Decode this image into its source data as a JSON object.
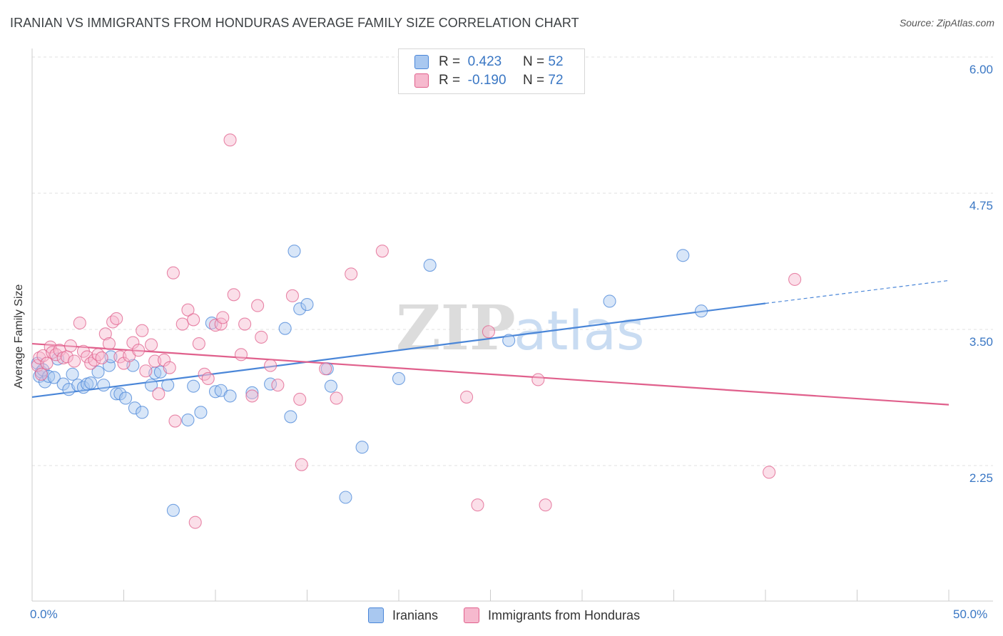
{
  "header": {
    "title": "IRANIAN VS IMMIGRANTS FROM HONDURAS AVERAGE FAMILY SIZE CORRELATION CHART",
    "source": "Source: ZipAtlas.com"
  },
  "watermark": {
    "zip": "ZIP",
    "atlas": "atlas"
  },
  "legend": {
    "rows": [
      {
        "r_label": "R =",
        "r_value": "0.423",
        "n_label": "N =",
        "n_value": "52",
        "color": "#a9c8f0"
      },
      {
        "r_label": "R =",
        "r_value": "-0.190",
        "n_label": "N =",
        "n_value": "72",
        "color": "#f6b9ce"
      }
    ]
  },
  "bottom_legend": {
    "items": [
      {
        "label": "Iranians",
        "color": "#a9c8f0"
      },
      {
        "label": "Immigrants from Honduras",
        "color": "#f6b9ce"
      }
    ]
  },
  "axis_labels": {
    "x_min": "0.0%",
    "x_max": "50.0%",
    "ylabel": "Average Family Size"
  },
  "chart_data": {
    "type": "scatter",
    "title": "IRANIAN VS IMMIGRANTS FROM HONDURAS AVERAGE FAMILY SIZE CORRELATION CHART",
    "xlabel": "",
    "ylabel": "Average Family Size",
    "xlim": [
      0,
      50
    ],
    "ylim": [
      1.2,
      6.1
    ],
    "y_ticks": [
      {
        "value": 2.25,
        "label": "2.25"
      },
      {
        "value": 3.5,
        "label": "3.50"
      },
      {
        "value": 4.75,
        "label": "4.75"
      },
      {
        "value": 6.0,
        "label": "6.00"
      }
    ],
    "x_tick_labels": [
      "0.0%",
      "50.0%"
    ],
    "grid": "horizontal-dashed",
    "legend_position": "top-center",
    "series": [
      {
        "name": "Iranians",
        "color": "#4a86d8",
        "fill": "#a9c8f0",
        "trend": {
          "x0": 0,
          "y0": 2.99,
          "x1": 40,
          "y1": 3.85,
          "dash_to_x": 50,
          "dash_to_y": 4.06
        },
        "points": [
          [
            0.3,
            3.3
          ],
          [
            0.4,
            3.18
          ],
          [
            0.5,
            3.22
          ],
          [
            0.6,
            3.24
          ],
          [
            0.7,
            3.13
          ],
          [
            0.9,
            3.18
          ],
          [
            1.2,
            3.17
          ],
          [
            1.4,
            3.34
          ],
          [
            1.7,
            3.11
          ],
          [
            2.0,
            3.06
          ],
          [
            2.2,
            3.2
          ],
          [
            2.5,
            3.1
          ],
          [
            2.8,
            3.08
          ],
          [
            3.0,
            3.11
          ],
          [
            3.2,
            3.12
          ],
          [
            3.6,
            3.22
          ],
          [
            3.9,
            3.1
          ],
          [
            4.2,
            3.28
          ],
          [
            4.3,
            3.36
          ],
          [
            4.6,
            3.02
          ],
          [
            4.8,
            3.02
          ],
          [
            5.1,
            2.98
          ],
          [
            5.5,
            3.28
          ],
          [
            5.6,
            2.89
          ],
          [
            6.0,
            2.85
          ],
          [
            6.5,
            3.1
          ],
          [
            6.7,
            3.21
          ],
          [
            7.0,
            3.22
          ],
          [
            7.4,
            3.1
          ],
          [
            7.7,
            1.95
          ],
          [
            8.5,
            2.78
          ],
          [
            8.8,
            3.09
          ],
          [
            9.2,
            2.85
          ],
          [
            9.8,
            3.67
          ],
          [
            10.0,
            3.04
          ],
          [
            10.3,
            3.05
          ],
          [
            10.8,
            3.0
          ],
          [
            12.0,
            3.03
          ],
          [
            13.0,
            3.11
          ],
          [
            13.8,
            3.62
          ],
          [
            14.1,
            2.81
          ],
          [
            14.6,
            3.8
          ],
          [
            14.3,
            4.33
          ],
          [
            15.0,
            3.84
          ],
          [
            16.1,
            3.25
          ],
          [
            16.3,
            3.09
          ],
          [
            17.1,
            2.07
          ],
          [
            18.0,
            2.53
          ],
          [
            20.0,
            3.16
          ],
          [
            21.7,
            4.2
          ],
          [
            26.0,
            3.51
          ],
          [
            31.5,
            3.87
          ],
          [
            35.5,
            4.29
          ],
          [
            36.5,
            3.78
          ]
        ]
      },
      {
        "name": "Immigrants from Honduras",
        "color": "#e0608c",
        "fill": "#f6b9ce",
        "trend": {
          "x0": 0,
          "y0": 3.48,
          "x1": 50,
          "y1": 2.92
        },
        "points": [
          [
            0.3,
            3.28
          ],
          [
            0.4,
            3.35
          ],
          [
            0.5,
            3.2
          ],
          [
            0.6,
            3.37
          ],
          [
            0.8,
            3.3
          ],
          [
            1.0,
            3.45
          ],
          [
            1.1,
            3.4
          ],
          [
            1.3,
            3.38
          ],
          [
            1.5,
            3.42
          ],
          [
            1.7,
            3.35
          ],
          [
            1.9,
            3.36
          ],
          [
            2.1,
            3.46
          ],
          [
            2.3,
            3.32
          ],
          [
            2.6,
            3.67
          ],
          [
            2.8,
            3.41
          ],
          [
            3.0,
            3.36
          ],
          [
            3.2,
            3.3
          ],
          [
            3.4,
            3.33
          ],
          [
            3.6,
            3.38
          ],
          [
            3.8,
            3.35
          ],
          [
            4.0,
            3.57
          ],
          [
            4.2,
            3.48
          ],
          [
            4.4,
            3.68
          ],
          [
            4.6,
            3.71
          ],
          [
            4.8,
            3.36
          ],
          [
            5.0,
            3.3
          ],
          [
            5.3,
            3.37
          ],
          [
            5.5,
            3.49
          ],
          [
            5.8,
            3.42
          ],
          [
            6.0,
            3.6
          ],
          [
            6.2,
            3.23
          ],
          [
            6.5,
            3.47
          ],
          [
            6.7,
            3.32
          ],
          [
            6.9,
            3.02
          ],
          [
            7.2,
            3.33
          ],
          [
            7.5,
            3.26
          ],
          [
            7.8,
            2.77
          ],
          [
            7.7,
            4.13
          ],
          [
            8.2,
            3.66
          ],
          [
            8.5,
            3.79
          ],
          [
            8.8,
            3.7
          ],
          [
            8.9,
            1.84
          ],
          [
            9.1,
            3.48
          ],
          [
            9.4,
            3.2
          ],
          [
            9.6,
            3.16
          ],
          [
            10.0,
            3.65
          ],
          [
            10.3,
            3.66
          ],
          [
            10.4,
            3.72
          ],
          [
            10.8,
            5.35
          ],
          [
            11.0,
            3.93
          ],
          [
            11.4,
            3.38
          ],
          [
            11.6,
            3.66
          ],
          [
            12.0,
            3.0
          ],
          [
            12.3,
            3.83
          ],
          [
            12.5,
            3.54
          ],
          [
            13.0,
            3.28
          ],
          [
            13.4,
            3.1
          ],
          [
            14.2,
            3.92
          ],
          [
            14.6,
            2.97
          ],
          [
            14.7,
            2.37
          ],
          [
            16.0,
            3.25
          ],
          [
            16.6,
            2.98
          ],
          [
            17.4,
            4.12
          ],
          [
            19.1,
            4.33
          ],
          [
            23.7,
            2.99
          ],
          [
            24.3,
            2.0
          ],
          [
            24.9,
            3.59
          ],
          [
            27.6,
            3.15
          ],
          [
            28.0,
            2.0
          ],
          [
            40.2,
            2.3
          ],
          [
            41.6,
            4.07
          ]
        ]
      }
    ]
  }
}
